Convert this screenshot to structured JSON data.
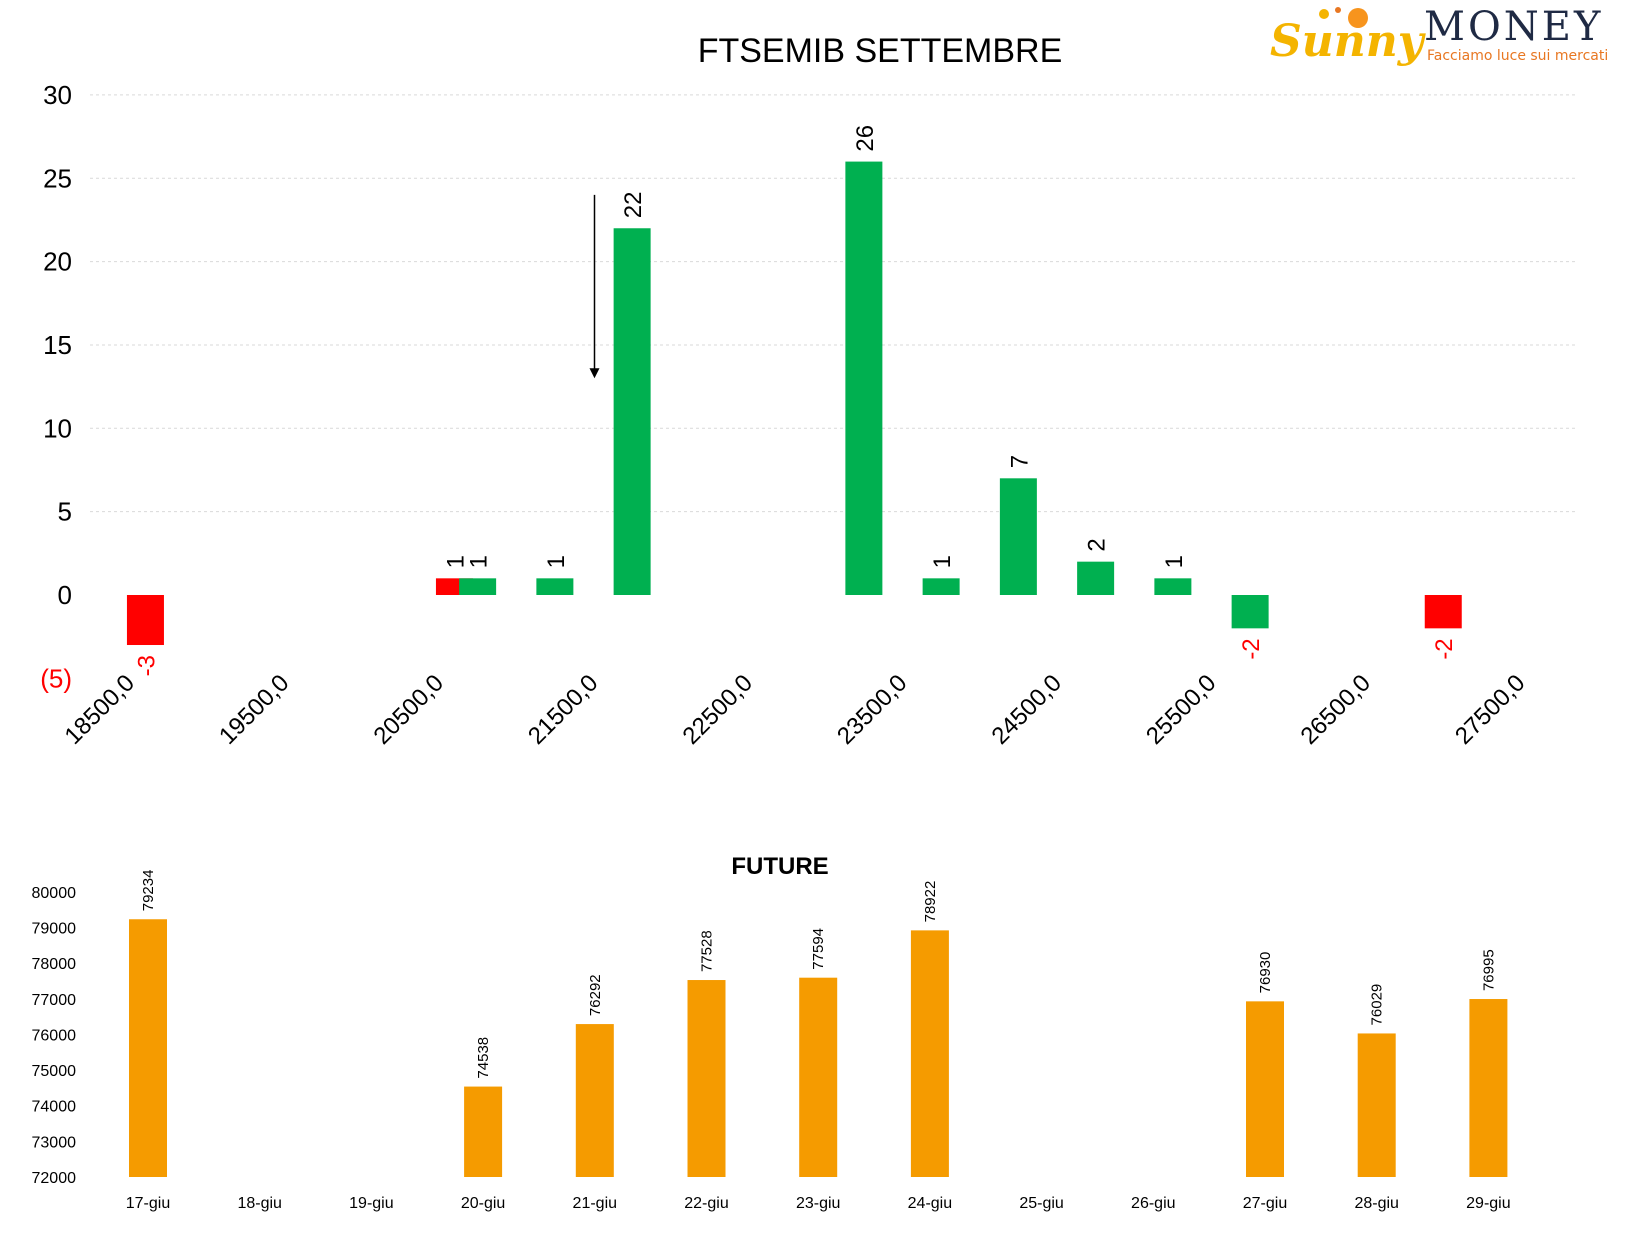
{
  "logo": {
    "brand_sunny": "Sunny",
    "brand_money": "MONEY",
    "tagline": "Facciamo luce sui mercati",
    "colors": {
      "sunny": "#f4b400",
      "money": "#1f2a44",
      "tagline": "#e87722"
    }
  },
  "chart_data": [
    {
      "type": "bar",
      "title": "FTSEMIB SETTEMBRE",
      "xlabel": "",
      "ylabel": "",
      "ylim": [
        -5,
        30
      ],
      "y_ticks": [
        30,
        25,
        20,
        15,
        10,
        5,
        0,
        -5
      ],
      "y_tick_labels": [
        "30",
        "25",
        "20",
        "15",
        "10",
        "5",
        "0",
        "(5)"
      ],
      "x_tick_labels": [
        "18500,0",
        "19500,0",
        "20500,0",
        "21500,0",
        "22500,0",
        "23500,0",
        "24500,0",
        "25500,0",
        "26500,0",
        "27500,0"
      ],
      "x_ticks": [
        18500,
        19500,
        20500,
        21500,
        22500,
        23500,
        24500,
        25500,
        26500,
        27500
      ],
      "x": [
        18600,
        20600,
        20750,
        21250,
        21750,
        23250,
        23750,
        24250,
        24750,
        25250,
        25750,
        27000
      ],
      "values": [
        -3,
        1,
        1,
        1,
        22,
        26,
        1,
        7,
        2,
        1,
        -2,
        -2
      ],
      "bar_colors": [
        "red",
        "red",
        "green",
        "green",
        "green",
        "green",
        "green",
        "green",
        "green",
        "green",
        "green",
        "red"
      ],
      "data_labels": [
        "-3",
        "1",
        "1",
        "1",
        "22",
        "26",
        "1",
        "7",
        "2",
        "1",
        "-2",
        "-2"
      ],
      "annotation": {
        "type": "arrow-down",
        "x": 21500,
        "y_from": 24,
        "y_to": 13
      },
      "colors": {
        "green": "#00b050",
        "red": "#ff0000",
        "negative_label": "#ff0000"
      },
      "grid": true,
      "legend": "none"
    },
    {
      "type": "bar",
      "title": "FUTURE",
      "xlabel": "",
      "ylabel": "",
      "ylim": [
        72000,
        80000
      ],
      "y_ticks": [
        80000,
        79000,
        78000,
        77000,
        76000,
        75000,
        74000,
        73000,
        72000
      ],
      "categories": [
        "17-giu",
        "18-giu",
        "19-giu",
        "20-giu",
        "21-giu",
        "22-giu",
        "23-giu",
        "24-giu",
        "25-giu",
        "26-giu",
        "27-giu",
        "28-giu",
        "29-giu"
      ],
      "values": [
        79234,
        null,
        null,
        74538,
        76292,
        77528,
        77594,
        78922,
        null,
        null,
        76930,
        76029,
        76995
      ],
      "colors": {
        "bar": "#f59b00"
      },
      "grid": false,
      "legend": "none"
    }
  ]
}
